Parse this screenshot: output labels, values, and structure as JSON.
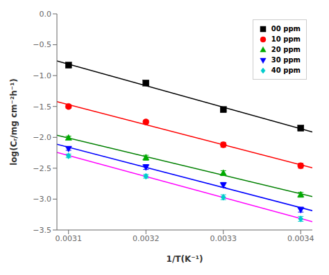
{
  "chart_data": {
    "type": "scatter",
    "x_label": "1/T(K⁻¹)",
    "y_label": "log(Cᵣ/mg cm⁻²h⁻¹)",
    "xlim": [
      0.003085,
      0.003415
    ],
    "ylim": [
      -3.5,
      0.0
    ],
    "xticks": [
      0.0031,
      0.0032,
      0.0033,
      0.0034
    ],
    "yticks": [
      {
        "value": 0.0,
        "label": "0.0"
      },
      {
        "value": -0.5,
        "label": "−0.5"
      },
      {
        "value": -1.0,
        "label": "−1.0"
      },
      {
        "value": -1.5,
        "label": "−1.5"
      },
      {
        "value": -2.0,
        "label": "−2.0"
      },
      {
        "value": -2.5,
        "label": "−2.5"
      },
      {
        "value": -3.0,
        "label": "−3.0"
      },
      {
        "value": -3.5,
        "label": "−3.5"
      }
    ],
    "grid": false,
    "legend": "upper right",
    "series": [
      {
        "name": "00 ppm",
        "color": "#000000",
        "marker": "square",
        "x": [
          0.0031,
          0.0032,
          0.0033,
          0.0034
        ],
        "values": [
          -0.83,
          -1.12,
          -1.55,
          -1.85
        ],
        "yerr": [
          0.03,
          0.03,
          0.03,
          0.03
        ],
        "fit": {
          "x": [
            0.003085,
            0.003415
          ],
          "values": [
            -0.76165,
            -1.91335
          ],
          "color": "#000000"
        }
      },
      {
        "name": "10 ppm",
        "color": "#ff0000",
        "marker": "circle",
        "x": [
          0.0031,
          0.0032,
          0.0033,
          0.0034
        ],
        "values": [
          -1.5,
          -1.75,
          -2.12,
          -2.46
        ],
        "yerr": [
          0.03,
          0.03,
          0.04,
          0.04
        ],
        "fit": {
          "x": [
            0.003085,
            0.003415
          ],
          "values": [
            -1.42125,
            -2.49375
          ],
          "color": "#ff0000"
        }
      },
      {
        "name": "20 ppm",
        "color": "#00aa00",
        "marker": "triangle",
        "x": [
          0.0031,
          0.0032,
          0.0033,
          0.0034
        ],
        "values": [
          -2.01,
          -2.33,
          -2.58,
          -2.93
        ],
        "yerr": [
          0.03,
          0.04,
          0.04,
          0.04
        ],
        "fit": {
          "x": [
            0.003085,
            0.003415
          ],
          "values": [
            -1.96585,
            -2.95915
          ],
          "color": "#008000"
        }
      },
      {
        "name": "30 ppm",
        "color": "#0000ff",
        "marker": "triangle-down",
        "x": [
          0.0031,
          0.0032,
          0.0033,
          0.0034
        ],
        "values": [
          -2.18,
          -2.48,
          -2.77,
          -3.17
        ],
        "yerr": [
          0.03,
          0.04,
          0.04,
          0.04
        ],
        "fit": {
          "x": [
            0.003085,
            0.003415
          ],
          "values": [
            -2.1121,
            -3.1879
          ],
          "color": "#0000ff"
        }
      },
      {
        "name": "40 ppm",
        "color": "#00cccc",
        "marker": "diamond",
        "x": [
          0.0031,
          0.0032,
          0.0033,
          0.0034
        ],
        "values": [
          -2.3,
          -2.63,
          -2.97,
          -3.32
        ],
        "yerr": [
          0.03,
          0.03,
          0.04,
          0.04
        ],
        "fit": {
          "x": [
            0.003085,
            0.003415
          ],
          "values": [
            -2.244,
            -3.366
          ],
          "color": "#ff00ff"
        }
      }
    ]
  }
}
